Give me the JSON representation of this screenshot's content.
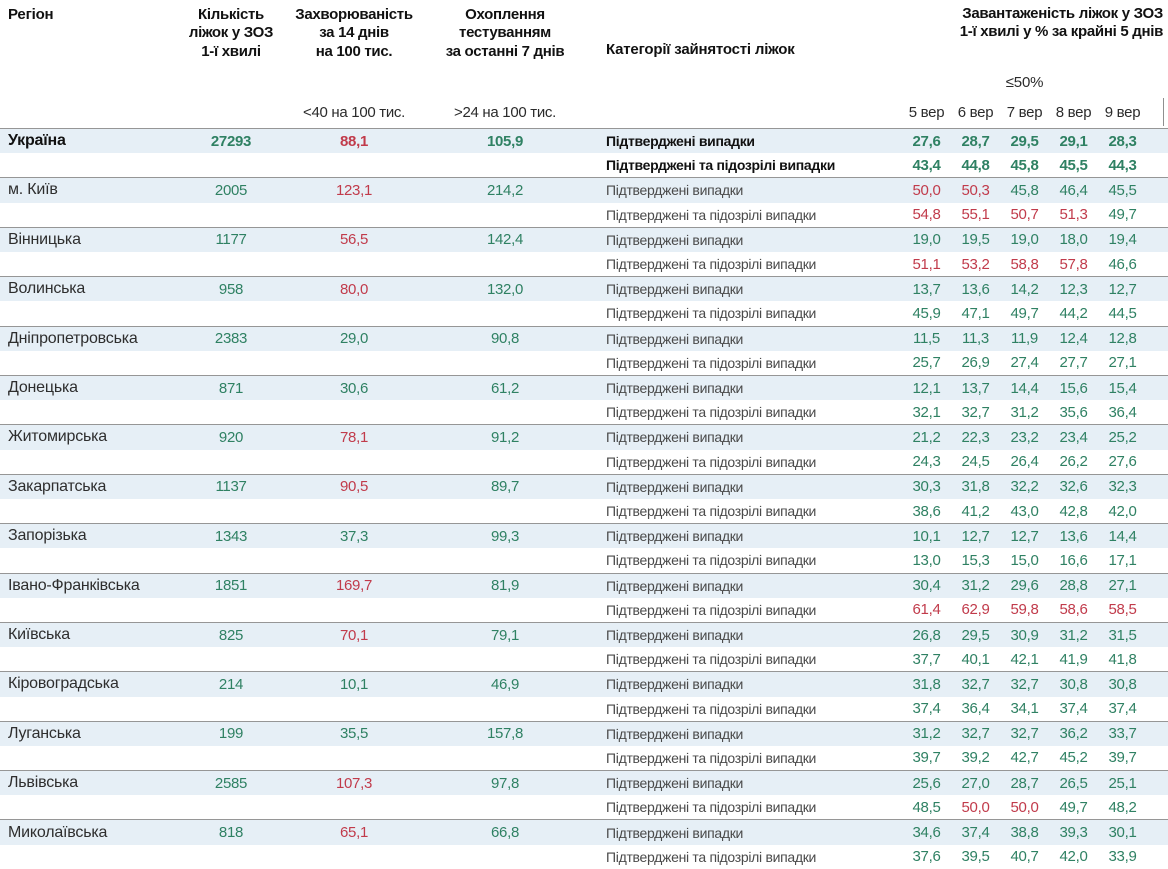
{
  "colors": {
    "green": "#2f8163",
    "red": "#c13b4b",
    "row_bg": "#e6eff6",
    "border": "#969696"
  },
  "header": {
    "region": "Регіон",
    "beds_lines": [
      "Кількість",
      "ліжок у ЗОЗ",
      "1-ї хвилі"
    ],
    "incidence_lines": [
      "Захворюваність",
      "за 14 днів",
      "на 100 тис."
    ],
    "incidence_threshold": "<40 на 100 тис.",
    "testing_lines": [
      "Охоплення",
      "тестуванням",
      "за останні 7 днів"
    ],
    "testing_threshold": ">24 на 100 тис.",
    "categories": "Категорії зайнятості ліжок",
    "load_title_lines": [
      "Завантаженість ліжок у ЗОЗ",
      "1-ї хвилі у % за крайні 5 днів"
    ],
    "load_threshold": "≤50%",
    "dates": [
      "5 вер",
      "6 вер",
      "7 вер",
      "8 вер",
      "9 вер"
    ]
  },
  "category_labels": {
    "confirmed": "Підтверджені випадки",
    "suspected": "Підтверджені та підозрілі випадки"
  },
  "rows": [
    {
      "region": "Україна",
      "bold": true,
      "beds": "27293",
      "incidence": "88,1",
      "incidence_status": "bad",
      "testing": "105,9",
      "confirmed": {
        "values": [
          "27,6",
          "28,7",
          "29,5",
          "29,1",
          "28,3"
        ],
        "status": [
          "ok",
          "ok",
          "ok",
          "ok",
          "ok"
        ]
      },
      "suspected": {
        "values": [
          "43,4",
          "44,8",
          "45,8",
          "45,5",
          "44,3"
        ],
        "status": [
          "ok",
          "ok",
          "ok",
          "ok",
          "ok"
        ]
      }
    },
    {
      "region": "м. Київ",
      "bold": false,
      "beds": "2005",
      "incidence": "123,1",
      "incidence_status": "bad",
      "testing": "214,2",
      "confirmed": {
        "values": [
          "50,0",
          "50,3",
          "45,8",
          "46,4",
          "45,5"
        ],
        "status": [
          "bad",
          "bad",
          "ok",
          "ok",
          "ok"
        ]
      },
      "suspected": {
        "values": [
          "54,8",
          "55,1",
          "50,7",
          "51,3",
          "49,7"
        ],
        "status": [
          "bad",
          "bad",
          "bad",
          "bad",
          "ok"
        ]
      }
    },
    {
      "region": "Вінницька",
      "bold": false,
      "beds": "1177",
      "incidence": "56,5",
      "incidence_status": "bad",
      "testing": "142,4",
      "confirmed": {
        "values": [
          "19,0",
          "19,5",
          "19,0",
          "18,0",
          "19,4"
        ],
        "status": [
          "ok",
          "ok",
          "ok",
          "ok",
          "ok"
        ]
      },
      "suspected": {
        "values": [
          "51,1",
          "53,2",
          "58,8",
          "57,8",
          "46,6"
        ],
        "status": [
          "bad",
          "bad",
          "bad",
          "bad",
          "ok"
        ]
      }
    },
    {
      "region": "Волинська",
      "bold": false,
      "beds": "958",
      "incidence": "80,0",
      "incidence_status": "bad",
      "testing": "132,0",
      "confirmed": {
        "values": [
          "13,7",
          "13,6",
          "14,2",
          "12,3",
          "12,7"
        ],
        "status": [
          "ok",
          "ok",
          "ok",
          "ok",
          "ok"
        ]
      },
      "suspected": {
        "values": [
          "45,9",
          "47,1",
          "49,7",
          "44,2",
          "44,5"
        ],
        "status": [
          "ok",
          "ok",
          "ok",
          "ok",
          "ok"
        ]
      }
    },
    {
      "region": "Дніпропетровська",
      "bold": false,
      "beds": "2383",
      "incidence": "29,0",
      "incidence_status": "ok",
      "testing": "90,8",
      "confirmed": {
        "values": [
          "11,5",
          "11,3",
          "11,9",
          "12,4",
          "12,8"
        ],
        "status": [
          "ok",
          "ok",
          "ok",
          "ok",
          "ok"
        ]
      },
      "suspected": {
        "values": [
          "25,7",
          "26,9",
          "27,4",
          "27,7",
          "27,1"
        ],
        "status": [
          "ok",
          "ok",
          "ok",
          "ok",
          "ok"
        ]
      }
    },
    {
      "region": "Донецька",
      "bold": false,
      "beds": "871",
      "incidence": "30,6",
      "incidence_status": "ok",
      "testing": "61,2",
      "confirmed": {
        "values": [
          "12,1",
          "13,7",
          "14,4",
          "15,6",
          "15,4"
        ],
        "status": [
          "ok",
          "ok",
          "ok",
          "ok",
          "ok"
        ]
      },
      "suspected": {
        "values": [
          "32,1",
          "32,7",
          "31,2",
          "35,6",
          "36,4"
        ],
        "status": [
          "ok",
          "ok",
          "ok",
          "ok",
          "ok"
        ]
      }
    },
    {
      "region": "Житомирська",
      "bold": false,
      "beds": "920",
      "incidence": "78,1",
      "incidence_status": "bad",
      "testing": "91,2",
      "confirmed": {
        "values": [
          "21,2",
          "22,3",
          "23,2",
          "23,4",
          "25,2"
        ],
        "status": [
          "ok",
          "ok",
          "ok",
          "ok",
          "ok"
        ]
      },
      "suspected": {
        "values": [
          "24,3",
          "24,5",
          "26,4",
          "26,2",
          "27,6"
        ],
        "status": [
          "ok",
          "ok",
          "ok",
          "ok",
          "ok"
        ]
      }
    },
    {
      "region": "Закарпатська",
      "bold": false,
      "beds": "1137",
      "incidence": "90,5",
      "incidence_status": "bad",
      "testing": "89,7",
      "confirmed": {
        "values": [
          "30,3",
          "31,8",
          "32,2",
          "32,6",
          "32,3"
        ],
        "status": [
          "ok",
          "ok",
          "ok",
          "ok",
          "ok"
        ]
      },
      "suspected": {
        "values": [
          "38,6",
          "41,2",
          "43,0",
          "42,8",
          "42,0"
        ],
        "status": [
          "ok",
          "ok",
          "ok",
          "ok",
          "ok"
        ]
      }
    },
    {
      "region": "Запорізька",
      "bold": false,
      "beds": "1343",
      "incidence": "37,3",
      "incidence_status": "ok",
      "testing": "99,3",
      "confirmed": {
        "values": [
          "10,1",
          "12,7",
          "12,7",
          "13,6",
          "14,4"
        ],
        "status": [
          "ok",
          "ok",
          "ok",
          "ok",
          "ok"
        ]
      },
      "suspected": {
        "values": [
          "13,0",
          "15,3",
          "15,0",
          "16,6",
          "17,1"
        ],
        "status": [
          "ok",
          "ok",
          "ok",
          "ok",
          "ok"
        ]
      }
    },
    {
      "region": "Івано-Франківська",
      "bold": false,
      "beds": "1851",
      "incidence": "169,7",
      "incidence_status": "bad",
      "testing": "81,9",
      "confirmed": {
        "values": [
          "30,4",
          "31,2",
          "29,6",
          "28,8",
          "27,1"
        ],
        "status": [
          "ok",
          "ok",
          "ok",
          "ok",
          "ok"
        ]
      },
      "suspected": {
        "values": [
          "61,4",
          "62,9",
          "59,8",
          "58,6",
          "58,5"
        ],
        "status": [
          "bad",
          "bad",
          "bad",
          "bad",
          "bad"
        ]
      }
    },
    {
      "region": "Київська",
      "bold": false,
      "beds": "825",
      "incidence": "70,1",
      "incidence_status": "bad",
      "testing": "79,1",
      "confirmed": {
        "values": [
          "26,8",
          "29,5",
          "30,9",
          "31,2",
          "31,5"
        ],
        "status": [
          "ok",
          "ok",
          "ok",
          "ok",
          "ok"
        ]
      },
      "suspected": {
        "values": [
          "37,7",
          "40,1",
          "42,1",
          "41,9",
          "41,8"
        ],
        "status": [
          "ok",
          "ok",
          "ok",
          "ok",
          "ok"
        ]
      }
    },
    {
      "region": "Кіровоградська",
      "bold": false,
      "beds": "214",
      "incidence": "10,1",
      "incidence_status": "ok",
      "testing": "46,9",
      "confirmed": {
        "values": [
          "31,8",
          "32,7",
          "32,7",
          "30,8",
          "30,8"
        ],
        "status": [
          "ok",
          "ok",
          "ok",
          "ok",
          "ok"
        ]
      },
      "suspected": {
        "values": [
          "37,4",
          "36,4",
          "34,1",
          "37,4",
          "37,4"
        ],
        "status": [
          "ok",
          "ok",
          "ok",
          "ok",
          "ok"
        ]
      }
    },
    {
      "region": "Луганська",
      "bold": false,
      "beds": "199",
      "incidence": "35,5",
      "incidence_status": "ok",
      "testing": "157,8",
      "confirmed": {
        "values": [
          "31,2",
          "32,7",
          "32,7",
          "36,2",
          "33,7"
        ],
        "status": [
          "ok",
          "ok",
          "ok",
          "ok",
          "ok"
        ]
      },
      "suspected": {
        "values": [
          "39,7",
          "39,2",
          "42,7",
          "45,2",
          "39,7"
        ],
        "status": [
          "ok",
          "ok",
          "ok",
          "ok",
          "ok"
        ]
      }
    },
    {
      "region": "Львівська",
      "bold": false,
      "beds": "2585",
      "incidence": "107,3",
      "incidence_status": "bad",
      "testing": "97,8",
      "confirmed": {
        "values": [
          "25,6",
          "27,0",
          "28,7",
          "26,5",
          "25,1"
        ],
        "status": [
          "ok",
          "ok",
          "ok",
          "ok",
          "ok"
        ]
      },
      "suspected": {
        "values": [
          "48,5",
          "50,0",
          "50,0",
          "49,7",
          "48,2"
        ],
        "status": [
          "ok",
          "bad",
          "bad",
          "ok",
          "ok"
        ]
      }
    },
    {
      "region": "Миколаївська",
      "bold": false,
      "beds": "818",
      "incidence": "65,1",
      "incidence_status": "bad",
      "testing": "66,8",
      "confirmed": {
        "values": [
          "34,6",
          "37,4",
          "38,8",
          "39,3",
          "30,1"
        ],
        "status": [
          "ok",
          "ok",
          "ok",
          "ok",
          "ok"
        ]
      },
      "suspected": {
        "values": [
          "37,6",
          "39,5",
          "40,7",
          "42,0",
          "33,9"
        ],
        "status": [
          "ok",
          "ok",
          "ok",
          "ok",
          "ok"
        ]
      }
    }
  ]
}
